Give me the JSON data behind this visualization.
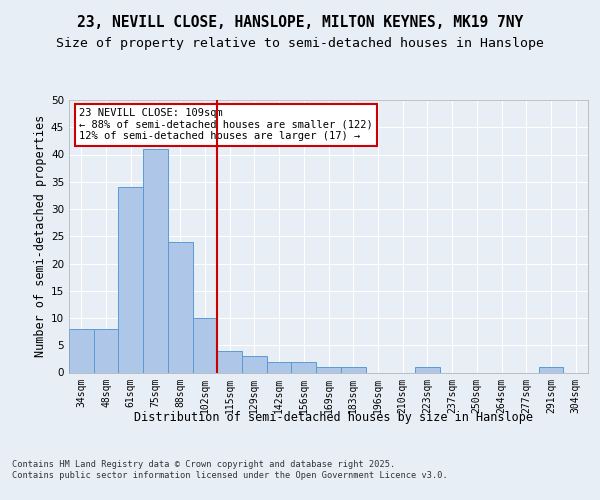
{
  "title": "23, NEVILL CLOSE, HANSLOPE, MILTON KEYNES, MK19 7NY",
  "subtitle": "Size of property relative to semi-detached houses in Hanslope",
  "xlabel": "Distribution of semi-detached houses by size in Hanslope",
  "ylabel": "Number of semi-detached properties",
  "categories": [
    "34sqm",
    "48sqm",
    "61sqm",
    "75sqm",
    "88sqm",
    "102sqm",
    "115sqm",
    "129sqm",
    "142sqm",
    "156sqm",
    "169sqm",
    "183sqm",
    "196sqm",
    "210sqm",
    "223sqm",
    "237sqm",
    "250sqm",
    "264sqm",
    "277sqm",
    "291sqm",
    "304sqm"
  ],
  "values": [
    8,
    8,
    34,
    41,
    24,
    10,
    4,
    3,
    2,
    2,
    1,
    1,
    0,
    0,
    1,
    0,
    0,
    0,
    0,
    1,
    0
  ],
  "bar_color": "#aec6e8",
  "bar_edge_color": "#5a9bd4",
  "vline_x": 5.5,
  "vline_color": "#cc0000",
  "annotation_text": "23 NEVILL CLOSE: 109sqm\n← 88% of semi-detached houses are smaller (122)\n12% of semi-detached houses are larger (17) →",
  "annotation_box_color": "#ffffff",
  "annotation_box_edge": "#cc0000",
  "ylim": [
    0,
    50
  ],
  "yticks": [
    0,
    5,
    10,
    15,
    20,
    25,
    30,
    35,
    40,
    45,
    50
  ],
  "footer_text": "Contains HM Land Registry data © Crown copyright and database right 2025.\nContains public sector information licensed under the Open Government Licence v3.0.",
  "bg_color": "#e8eef5",
  "plot_bg_color": "#e8eef5",
  "grid_color": "#ffffff",
  "title_fontsize": 10.5,
  "subtitle_fontsize": 9.5,
  "tick_fontsize": 7,
  "label_fontsize": 8.5,
  "annotation_fontsize": 7.5,
  "footer_fontsize": 6.2
}
